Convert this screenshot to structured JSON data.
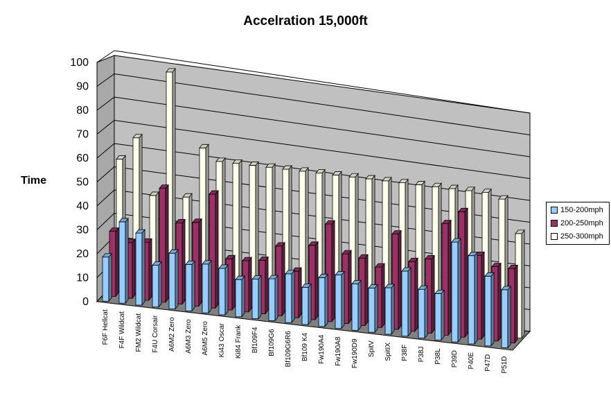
{
  "chart_data": {
    "type": "bar",
    "title": "Accelration 15,000ft",
    "ylabel": "Time",
    "xlabel": "",
    "ylim": [
      0,
      100
    ],
    "yticks": [
      "0",
      "10",
      "20",
      "30",
      "40",
      "50",
      "60",
      "70",
      "80",
      "90",
      "100"
    ],
    "grid": true,
    "legend_position": "right",
    "categories": [
      "F6F Hellcat",
      "F4F Wildcat",
      "FM2 Wildcat",
      "F4U Corsair",
      "A6M2 Zero",
      "A6M3 Zero",
      "A6M5 Zero",
      "Ki43 Oscar",
      "Ki84 Frank",
      "Bf109F4",
      "Bf109G6",
      "Bf109G6R6",
      "Bf109 K4",
      "Fw190A4",
      "Fw190A8",
      "Fw190D9",
      "SpitV",
      "SpitIX",
      "P38F",
      "P38J",
      "P38L",
      "P39D",
      "P40E",
      "P47D",
      "P51D"
    ],
    "series": [
      {
        "name": "150-200mph",
        "color": "#99ccff",
        "values": [
          19,
          35,
          31,
          18,
          24,
          20,
          21,
          20,
          16,
          17,
          18,
          21,
          16,
          21,
          23,
          20,
          19,
          20,
          28,
          21,
          20,
          43,
          38,
          30,
          25
        ]
      },
      {
        "name": "200-250mph",
        "color": "#993366",
        "values": [
          28,
          24,
          25,
          49,
          35,
          36,
          49,
          22,
          22,
          23,
          30,
          20,
          32,
          42,
          30,
          29,
          26,
          41,
          30,
          32,
          48,
          54,
          36,
          32,
          32
        ]
      },
      {
        "name": "250-300mph",
        "color": "#ffffee",
        "values": [
          57,
          67,
          43,
          97,
          44,
          66,
          61,
          61,
          61,
          61,
          61,
          61,
          61,
          61,
          61,
          61,
          61,
          61,
          61,
          61,
          61,
          61,
          61,
          59,
          45
        ]
      }
    ]
  }
}
